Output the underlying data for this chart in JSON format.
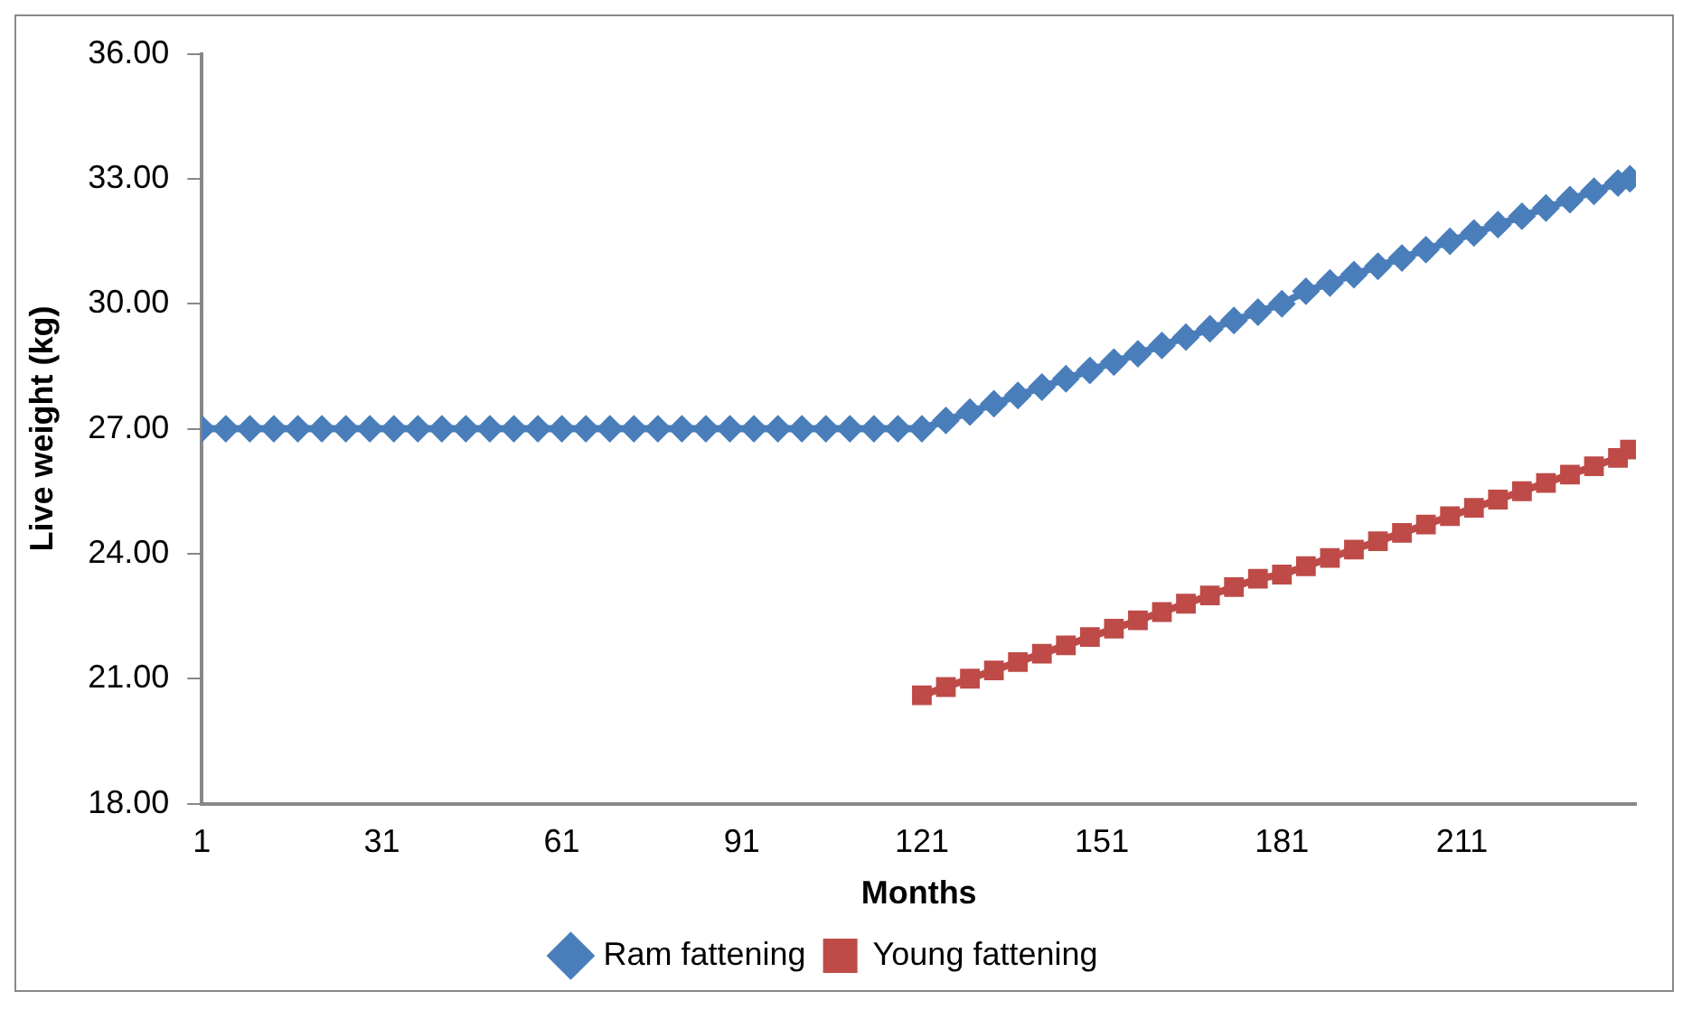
{
  "chart_data": {
    "type": "line",
    "xlabel": "Months",
    "ylabel": "Live weight (kg)",
    "xlim": [
      1,
      240
    ],
    "xticks": [
      1,
      31,
      61,
      91,
      121,
      151,
      181,
      211
    ],
    "ylim": [
      18,
      36
    ],
    "yticks": [
      {
        "value": 18,
        "label": "18.00"
      },
      {
        "value": 21,
        "label": "21.00"
      },
      {
        "value": 24,
        "label": "24.00"
      },
      {
        "value": 27,
        "label": "27.00"
      },
      {
        "value": 30,
        "label": "30.00"
      },
      {
        "value": 33,
        "label": "33.00"
      },
      {
        "value": 36,
        "label": "36.00"
      }
    ],
    "grid": false,
    "legend": "bottom",
    "series": [
      {
        "name": "Ram fattening",
        "color": "#4a7ebb",
        "marker": "diamond",
        "x": [
          1,
          5,
          9,
          13,
          17,
          21,
          25,
          29,
          33,
          37,
          41,
          45,
          49,
          53,
          57,
          61,
          65,
          69,
          73,
          77,
          81,
          85,
          89,
          93,
          97,
          101,
          105,
          109,
          113,
          117,
          121,
          125,
          129,
          133,
          137,
          141,
          145,
          149,
          153,
          157,
          161,
          165,
          169,
          173,
          177,
          181,
          185,
          189,
          193,
          197,
          201,
          205,
          209,
          213,
          217,
          221,
          225,
          229,
          233,
          237,
          239
        ],
        "values": [
          27,
          27,
          27,
          27,
          27,
          27,
          27,
          27,
          27,
          27,
          27,
          27,
          27,
          27,
          27,
          27,
          27,
          27,
          27,
          27,
          27,
          27,
          27,
          27,
          27,
          27,
          27,
          27,
          27,
          27,
          27,
          27.2,
          27.4,
          27.6,
          27.8,
          28.0,
          28.2,
          28.4,
          28.6,
          28.8,
          29.0,
          29.2,
          29.4,
          29.6,
          29.8,
          30.0,
          30.3,
          30.5,
          30.7,
          30.9,
          31.1,
          31.3,
          31.5,
          31.7,
          31.9,
          32.1,
          32.3,
          32.5,
          32.7,
          32.9,
          33.0
        ]
      },
      {
        "name": "Young fattening",
        "color": "#be4b48",
        "marker": "square",
        "x": [
          121,
          125,
          129,
          133,
          137,
          141,
          145,
          149,
          153,
          157,
          161,
          165,
          169,
          173,
          177,
          181,
          185,
          189,
          193,
          197,
          201,
          205,
          209,
          213,
          217,
          221,
          225,
          229,
          233,
          237,
          239
        ],
        "values": [
          20.6,
          20.8,
          21.0,
          21.2,
          21.4,
          21.6,
          21.8,
          22.0,
          22.2,
          22.4,
          22.6,
          22.8,
          23.0,
          23.2,
          23.4,
          23.5,
          23.7,
          23.9,
          24.1,
          24.3,
          24.5,
          24.7,
          24.9,
          25.1,
          25.3,
          25.5,
          25.7,
          25.9,
          26.1,
          26.3,
          26.5
        ]
      }
    ]
  }
}
